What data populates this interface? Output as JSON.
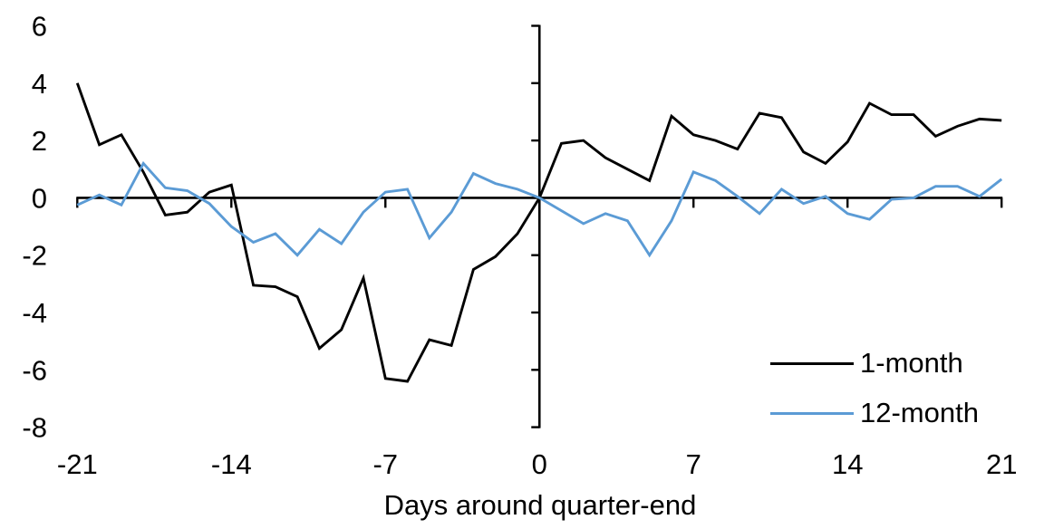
{
  "figure": {
    "background_color": "#ffffff",
    "axis_color": "#000000",
    "text_color": "#000000"
  },
  "chart_data": {
    "type": "line",
    "title": "",
    "xlabel": "Days around quarter-end",
    "ylabel": "",
    "x": [
      -21,
      -20,
      -19,
      -18,
      -17,
      -16,
      -15,
      -14,
      -13,
      -12,
      -11,
      -10,
      -9,
      -8,
      -7,
      -6,
      -5,
      -4,
      -3,
      -2,
      -1,
      0,
      1,
      2,
      3,
      4,
      5,
      6,
      7,
      8,
      9,
      10,
      11,
      12,
      13,
      14,
      15,
      16,
      17,
      18,
      19,
      20,
      21
    ],
    "series": [
      {
        "name": "1-month",
        "color": "#000000",
        "values": [
          4.0,
          1.85,
          2.2,
          0.9,
          -0.6,
          -0.5,
          0.2,
          0.45,
          -3.05,
          -3.1,
          -3.45,
          -5.25,
          -4.6,
          -2.8,
          -6.3,
          -6.4,
          -4.95,
          -5.15,
          -2.5,
          -2.05,
          -1.25,
          0,
          1.9,
          2.0,
          1.4,
          1.0,
          0.6,
          2.85,
          2.2,
          2.0,
          1.7,
          2.95,
          2.8,
          1.6,
          1.2,
          1.95,
          3.3,
          2.9,
          2.9,
          2.15,
          2.5,
          2.75,
          2.7
        ]
      },
      {
        "name": "12-month",
        "color": "#5B9BD5",
        "values": [
          -0.25,
          0.1,
          -0.25,
          1.2,
          0.35,
          0.25,
          -0.2,
          -1.0,
          -1.55,
          -1.25,
          -2.0,
          -1.1,
          -1.6,
          -0.5,
          0.2,
          0.3,
          -1.4,
          -0.5,
          0.85,
          0.5,
          0.3,
          0,
          -0.45,
          -0.9,
          -0.55,
          -0.8,
          -2.0,
          -0.8,
          0.9,
          0.6,
          0.05,
          -0.55,
          0.3,
          -0.2,
          0.05,
          -0.55,
          -0.75,
          -0.05,
          0.0,
          0.4,
          0.4,
          0.05,
          0.65
        ]
      }
    ],
    "xlim": [
      -21,
      21
    ],
    "ylim": [
      -8,
      6
    ],
    "x_ticks": [
      -21,
      -14,
      -7,
      0,
      7,
      14,
      21
    ],
    "y_ticks": [
      6,
      4,
      2,
      0,
      -2,
      -4,
      -6,
      -8
    ],
    "grid": false,
    "legend_position": "lower right",
    "y_axis_crosses_at_x": 0,
    "x_axis_crosses_at_y": 0
  },
  "legend": {
    "items": [
      {
        "label": "1-month",
        "color": "#000000"
      },
      {
        "label": "12-month",
        "color": "#5B9BD5"
      }
    ]
  }
}
